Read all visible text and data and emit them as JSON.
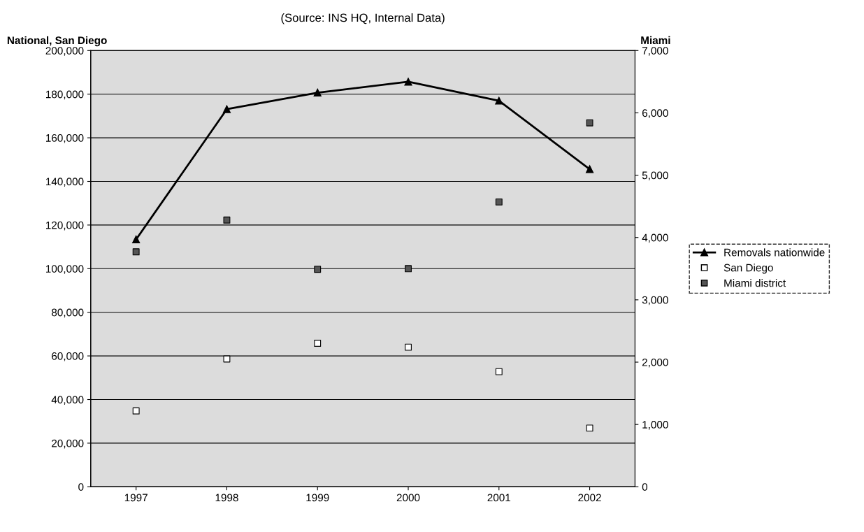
{
  "chart_data": {
    "type": "line",
    "subtitle": "(Source: INS HQ, Internal Data)",
    "ylabel": "National, San Diego",
    "y2label": "Miami",
    "categories": [
      "1997",
      "1998",
      "1999",
      "2000",
      "2001",
      "2002"
    ],
    "series": [
      {
        "name": "Removals nationwide",
        "color": "#000000",
        "marker": "triangle",
        "values": [
          113400,
          173100,
          180700,
          185700,
          177000,
          145600
        ]
      },
      {
        "name": "San Diego",
        "type": "scatter",
        "color": "#ffffff",
        "marker": "square",
        "values": [
          34800,
          58600,
          65800,
          64000,
          52800,
          26900
        ]
      },
      {
        "name": "Miami district",
        "type": "scatter",
        "color": "#555555",
        "marker": "square",
        "axis": "y2",
        "values": [
          3770,
          4280,
          3490,
          3500,
          4570,
          5840
        ]
      }
    ],
    "ylim": [
      0,
      200000
    ],
    "yticks": [
      {
        "value": 0,
        "label": "0"
      },
      {
        "value": 20000,
        "label": "20,000"
      },
      {
        "value": 40000,
        "label": "40,000"
      },
      {
        "value": 60000,
        "label": "60,000"
      },
      {
        "value": 80000,
        "label": "80,000"
      },
      {
        "value": 100000,
        "label": "100,000"
      },
      {
        "value": 120000,
        "label": "120,000"
      },
      {
        "value": 140000,
        "label": "140,000"
      },
      {
        "value": 160000,
        "label": "160,000"
      },
      {
        "value": 180000,
        "label": "180,000"
      },
      {
        "value": 200000,
        "label": "200,000"
      }
    ],
    "y2lim": [
      0,
      7000
    ],
    "y2ticks": [
      {
        "value": 0,
        "label": "0"
      },
      {
        "value": 1000,
        "label": "1,000"
      },
      {
        "value": 2000,
        "label": "2,000"
      },
      {
        "value": 3000,
        "label": "3,000"
      },
      {
        "value": 4000,
        "label": "4,000"
      },
      {
        "value": 5000,
        "label": "5,000"
      },
      {
        "value": 6000,
        "label": "6,000"
      },
      {
        "value": 7000,
        "label": "7,000"
      }
    ],
    "grid": "y",
    "legend": "right"
  }
}
